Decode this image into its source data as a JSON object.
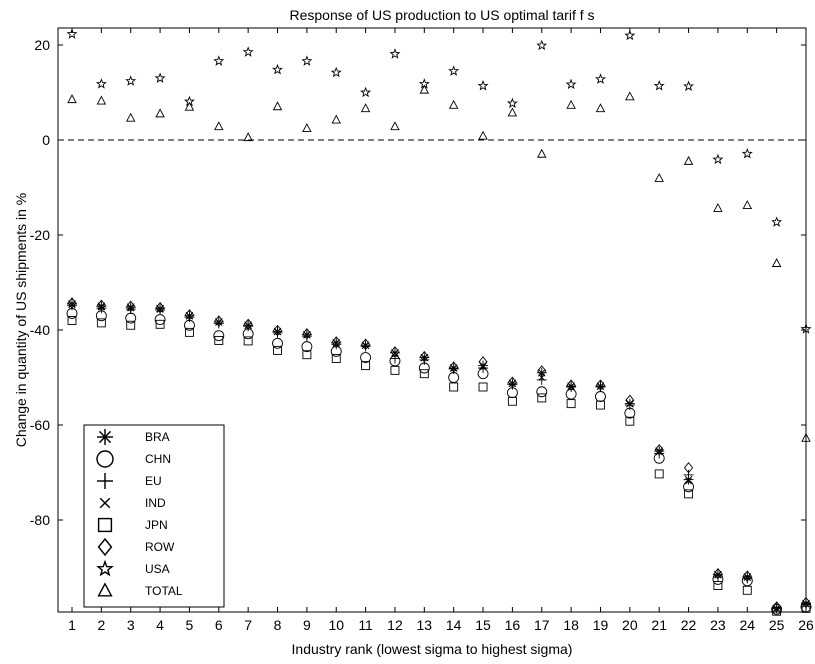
{
  "chart_data": {
    "type": "scatter",
    "title": "Response of  US production to US optimal tarif f s",
    "xlabel": "Industry rank (lowest sigma to highest sigma)",
    "ylabel": "Change in quantity of US shipments in %",
    "xlim": [
      1,
      26
    ],
    "ylim": [
      -100,
      24
    ],
    "x_ticks": [
      "1",
      "2",
      "3",
      "4",
      "5",
      "6",
      "7",
      "8",
      "9",
      "10",
      "11",
      "12",
      "13",
      "14",
      "15",
      "16",
      "17",
      "18",
      "19",
      "20",
      "21",
      "22",
      "23",
      "24",
      "25",
      "26"
    ],
    "y_ticks": [
      "20",
      "0",
      "-20",
      "-40",
      "-60",
      "-80"
    ],
    "reference_line": {
      "y": 0,
      "style": "dashed"
    },
    "grid": false,
    "legend_position": "bottom-left",
    "x": [
      1,
      2,
      3,
      4,
      5,
      6,
      7,
      8,
      9,
      10,
      11,
      12,
      13,
      14,
      15,
      16,
      17,
      18,
      19,
      20,
      21,
      22,
      23,
      24,
      25,
      26
    ],
    "series": [
      {
        "name": "BRA",
        "marker": "asterisk",
        "values": [
          -34.5,
          -35,
          -35.2,
          -35.5,
          -37,
          -38.3,
          -39,
          -40.3,
          -41,
          -42.7,
          -43.2,
          -44.8,
          -45.8,
          -48,
          -47.5,
          -51.2,
          -49,
          -51.8,
          -51.8,
          -55.5,
          -65.5,
          -71.5,
          -91.5,
          -92,
          -98.6,
          -97.6
        ]
      },
      {
        "name": "CHN",
        "marker": "circle",
        "values": [
          -36.5,
          -37,
          -37.5,
          -37.8,
          -39,
          -41.2,
          -40.8,
          -42.8,
          -43.5,
          -44.5,
          -45.8,
          -46.5,
          -48,
          -50,
          -49.2,
          -53.2,
          -53,
          -53.5,
          -54,
          -57.5,
          -67,
          -73,
          -92.5,
          -92.8,
          -98.8,
          -98.3
        ]
      },
      {
        "name": "EU",
        "marker": "plus",
        "values": [
          -34.8,
          -35.4,
          -35.6,
          -35.8,
          -37.3,
          -38.6,
          -39.2,
          -40.6,
          -41.3,
          -43,
          -43.5,
          -46,
          -46.3,
          -48.2,
          -48,
          -51.5,
          -50.5,
          -52,
          -52,
          -55.8,
          -66,
          -70.5,
          -91.8,
          -92.3,
          -98.5,
          -97.8
        ]
      },
      {
        "name": "IND",
        "marker": "x",
        "values": [
          -34.7,
          -35.2,
          -35.4,
          -35.7,
          -37.1,
          -38.4,
          -39.1,
          -40.4,
          -41.1,
          -42.8,
          -43.3,
          -44.9,
          -45.9,
          -48.1,
          -47.7,
          -51.3,
          -50,
          -51.9,
          -51.9,
          -55.6,
          -65.7,
          -71.8,
          -91.6,
          -92.1,
          -98.6,
          -97.7
        ]
      },
      {
        "name": "JPN",
        "marker": "square",
        "values": [
          -38,
          -38.5,
          -39,
          -38.8,
          -40.5,
          -42.2,
          -42.3,
          -44.3,
          -45.2,
          -46,
          -47.5,
          -48.5,
          -49.2,
          -52,
          -52,
          -55,
          -54.3,
          -55.5,
          -55.8,
          -59.2,
          -70.3,
          -74.5,
          -93.8,
          -94.8,
          -99.2,
          -98.6
        ]
      },
      {
        "name": "ROW",
        "marker": "diamond",
        "values": [
          -34.3,
          -34.8,
          -35,
          -35.3,
          -36.8,
          -38.1,
          -38.8,
          -40.1,
          -40.8,
          -42.5,
          -43,
          -44.6,
          -45.6,
          -47.8,
          -46.7,
          -51,
          -48.6,
          -51.6,
          -51.6,
          -54.8,
          -65.2,
          -69,
          -91.3,
          -91.8,
          -98.3,
          -97.4
        ]
      },
      {
        "name": "USA",
        "marker": "star",
        "values": [
          22.3,
          11.8,
          12.4,
          13,
          8.1,
          16.6,
          18.5,
          14.8,
          16.6,
          14.2,
          10,
          18.1,
          11.8,
          14.5,
          11.4,
          7.7,
          19.9,
          11.7,
          12.8,
          22,
          11.4,
          11.3,
          -4.1,
          -2.9,
          -17.3,
          -39.8
        ]
      },
      {
        "name": "TOTAL",
        "marker": "triangle",
        "values": [
          8.5,
          8.2,
          4.6,
          5.5,
          6.9,
          2.8,
          0.5,
          7,
          2.4,
          4.2,
          6.6,
          2.8,
          10.5,
          7.3,
          0.8,
          5.7,
          -3,
          7.3,
          6.6,
          9.1,
          -8.1,
          -4.5,
          -14.4,
          -13.8,
          -26,
          -62.8
        ]
      }
    ]
  }
}
